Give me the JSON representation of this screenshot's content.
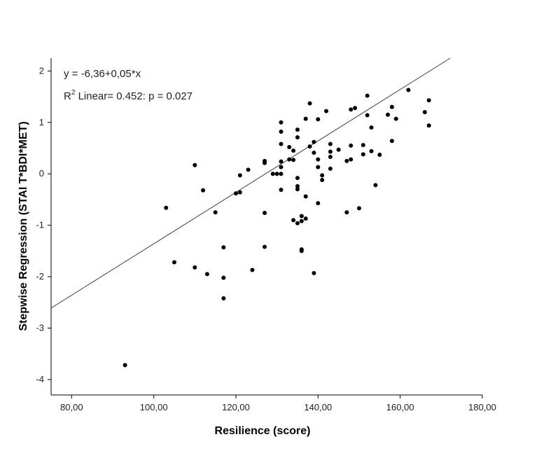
{
  "chart_data": {
    "type": "scatter",
    "title": "",
    "xlabel": "Resilience (score)",
    "ylabel": "Stepwise Regression (STAI T*BDI*MET)",
    "xlim": [
      75,
      180
    ],
    "ylim": [
      -4.3,
      2.25
    ],
    "x_ticks": [
      {
        "value": 80,
        "label": "80,00"
      },
      {
        "value": 100,
        "label": "100,00"
      },
      {
        "value": 120,
        "label": "120,00"
      },
      {
        "value": 140,
        "label": "140,00"
      },
      {
        "value": 160,
        "label": "160,00"
      },
      {
        "value": 180,
        "label": "180,00"
      }
    ],
    "y_ticks": [
      {
        "value": 2,
        "label": "2"
      },
      {
        "value": 1,
        "label": "1"
      },
      {
        "value": 0,
        "label": "0"
      },
      {
        "value": -1,
        "label": "-1"
      },
      {
        "value": -2,
        "label": "-2"
      },
      {
        "value": -3,
        "label": "-3"
      },
      {
        "value": -4,
        "label": "-4"
      }
    ],
    "grid": false,
    "fit_line": {
      "intercept": -6.36,
      "slope": 0.05,
      "x_range": [
        75,
        180
      ]
    },
    "annotations": {
      "equation": "y = -6,36+0,05*x",
      "r2_prefix": "R",
      "r2_sup": "2",
      "r2_rest": " Linear= 0.452: p = 0.027"
    },
    "points": [
      {
        "x": 93,
        "y": -3.72
      },
      {
        "x": 103,
        "y": -0.66
      },
      {
        "x": 105,
        "y": -1.72
      },
      {
        "x": 110,
        "y": 0.17
      },
      {
        "x": 110,
        "y": -1.82
      },
      {
        "x": 112,
        "y": -0.32
      },
      {
        "x": 113,
        "y": -1.95
      },
      {
        "x": 115,
        "y": -0.75
      },
      {
        "x": 117,
        "y": -1.43
      },
      {
        "x": 117,
        "y": -2.02
      },
      {
        "x": 117,
        "y": -2.42
      },
      {
        "x": 120,
        "y": -0.38
      },
      {
        "x": 121,
        "y": -0.36
      },
      {
        "x": 121,
        "y": -0.03
      },
      {
        "x": 123,
        "y": 0.08
      },
      {
        "x": 124,
        "y": -1.87
      },
      {
        "x": 127,
        "y": 0.25
      },
      {
        "x": 127,
        "y": 0.21
      },
      {
        "x": 127,
        "y": -0.76
      },
      {
        "x": 127,
        "y": -1.42
      },
      {
        "x": 129,
        "y": 0.0
      },
      {
        "x": 130,
        "y": 0.0
      },
      {
        "x": 131,
        "y": 0.0
      },
      {
        "x": 131,
        "y": 1.0
      },
      {
        "x": 131,
        "y": 0.82
      },
      {
        "x": 131,
        "y": 0.58
      },
      {
        "x": 131,
        "y": 0.24
      },
      {
        "x": 131,
        "y": 0.13
      },
      {
        "x": 131,
        "y": -0.31
      },
      {
        "x": 133,
        "y": 0.52
      },
      {
        "x": 133,
        "y": 0.28
      },
      {
        "x": 134,
        "y": 0.45
      },
      {
        "x": 134,
        "y": 0.27
      },
      {
        "x": 134,
        "y": -0.9
      },
      {
        "x": 135,
        "y": 0.86
      },
      {
        "x": 135,
        "y": 0.71
      },
      {
        "x": 135,
        "y": -0.08
      },
      {
        "x": 135,
        "y": -0.24
      },
      {
        "x": 135,
        "y": -0.3
      },
      {
        "x": 135,
        "y": -0.96
      },
      {
        "x": 136,
        "y": -0.82
      },
      {
        "x": 136,
        "y": -0.92
      },
      {
        "x": 136,
        "y": -1.47
      },
      {
        "x": 136,
        "y": -1.5
      },
      {
        "x": 137,
        "y": 1.07
      },
      {
        "x": 137,
        "y": -0.44
      },
      {
        "x": 137,
        "y": -0.87
      },
      {
        "x": 138,
        "y": 1.37
      },
      {
        "x": 138,
        "y": 0.53
      },
      {
        "x": 139,
        "y": 0.62
      },
      {
        "x": 139,
        "y": 0.41
      },
      {
        "x": 139,
        "y": -1.93
      },
      {
        "x": 140,
        "y": 1.06
      },
      {
        "x": 140,
        "y": 0.28
      },
      {
        "x": 140,
        "y": 0.13
      },
      {
        "x": 140,
        "y": -0.57
      },
      {
        "x": 141,
        "y": -0.03
      },
      {
        "x": 141,
        "y": -0.12
      },
      {
        "x": 142,
        "y": 1.22
      },
      {
        "x": 143,
        "y": 0.58
      },
      {
        "x": 143,
        "y": 0.43
      },
      {
        "x": 143,
        "y": 0.33
      },
      {
        "x": 143,
        "y": 0.1
      },
      {
        "x": 145,
        "y": 0.47
      },
      {
        "x": 147,
        "y": 0.25
      },
      {
        "x": 147,
        "y": -0.75
      },
      {
        "x": 148,
        "y": 1.25
      },
      {
        "x": 148,
        "y": 0.55
      },
      {
        "x": 148,
        "y": 0.28
      },
      {
        "x": 149,
        "y": 1.28
      },
      {
        "x": 150,
        "y": -0.67
      },
      {
        "x": 151,
        "y": 0.56
      },
      {
        "x": 151,
        "y": 0.38
      },
      {
        "x": 152,
        "y": 1.52
      },
      {
        "x": 152,
        "y": 1.14
      },
      {
        "x": 153,
        "y": 0.9
      },
      {
        "x": 153,
        "y": 0.44
      },
      {
        "x": 154,
        "y": -0.22
      },
      {
        "x": 155,
        "y": 0.37
      },
      {
        "x": 157,
        "y": 1.15
      },
      {
        "x": 158,
        "y": 1.3
      },
      {
        "x": 158,
        "y": 0.64
      },
      {
        "x": 159,
        "y": 1.07
      },
      {
        "x": 162,
        "y": 1.63
      },
      {
        "x": 166,
        "y": 1.2
      },
      {
        "x": 167,
        "y": 1.43
      },
      {
        "x": 167,
        "y": 0.94
      }
    ]
  }
}
